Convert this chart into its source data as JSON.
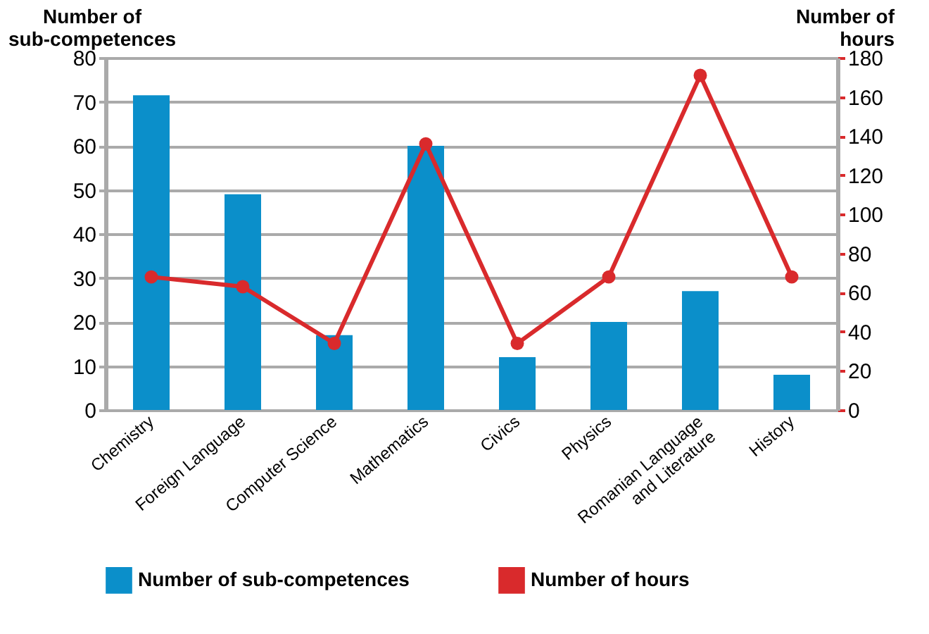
{
  "chart_data": {
    "type": "bar",
    "categories": [
      "Chemistry",
      "Foreign Language",
      "Computer Science",
      "Mathematics",
      "Civics",
      "Physics",
      "Romanian Language\nand Literature",
      "History"
    ],
    "series": [
      {
        "name": "Number of sub-competences",
        "color": "#0b8fca",
        "values": [
          71.5,
          49,
          17,
          60,
          12,
          20,
          27,
          8
        ]
      },
      {
        "name": "Number of hours",
        "type": "line",
        "axis": "y2",
        "color": "#d92a2c",
        "marker": "circle",
        "values": [
          68,
          63,
          34,
          136,
          34,
          68,
          171,
          68
        ]
      }
    ],
    "ylabel": "Number of\nsub-competences",
    "y2label": "Number of\nhours",
    "ylim": [
      0,
      80
    ],
    "yticks": [
      0,
      10,
      20,
      30,
      40,
      50,
      60,
      70,
      80
    ],
    "y2lim": [
      0,
      180
    ],
    "y2ticks": [
      0,
      20,
      40,
      60,
      80,
      100,
      120,
      140,
      160,
      180
    ],
    "grid": "y",
    "legend": "bottom"
  }
}
